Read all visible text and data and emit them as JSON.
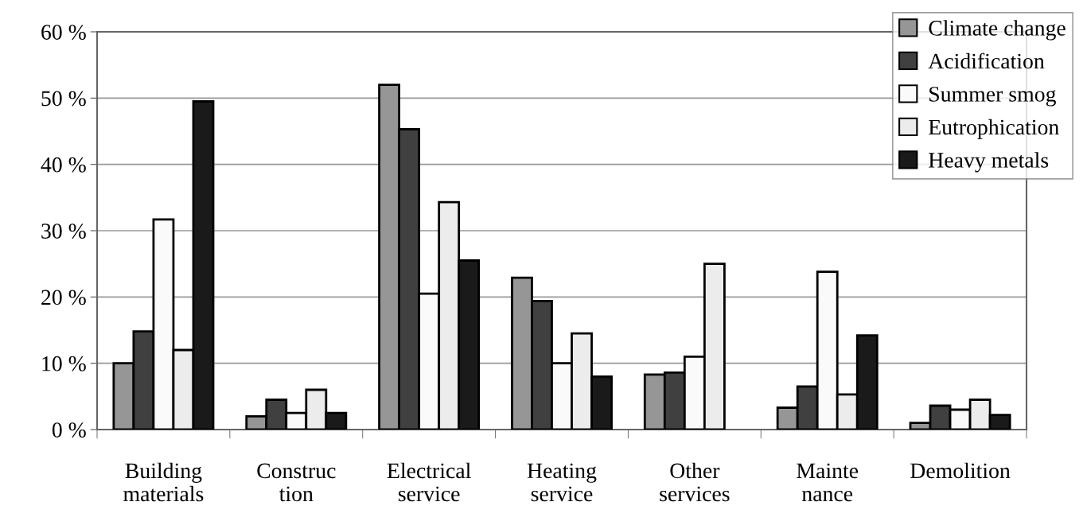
{
  "chart_data": {
    "type": "bar",
    "categories": [
      "Building\nmaterials",
      "Construc\ntion",
      "Electrical\nservice",
      "Heating\nservice",
      "Other\nservices",
      "Mainte\nnance",
      "Demolition"
    ],
    "series": [
      {
        "name": "Climate change",
        "color": "#969696",
        "values": [
          10,
          2,
          52,
          22.9,
          8.3,
          3.3,
          1
        ]
      },
      {
        "name": "Acidification",
        "color": "#404040",
        "values": [
          14.8,
          4.5,
          45.3,
          19.4,
          8.6,
          6.5,
          3.6
        ]
      },
      {
        "name": "Summer smog",
        "color": "#fafafa",
        "values": [
          31.7,
          2.5,
          20.5,
          10,
          11,
          23.8,
          3
        ]
      },
      {
        "name": "Eutrophication",
        "color": "#ececec",
        "values": [
          12,
          6,
          34.3,
          14.5,
          25,
          5.3,
          4.5
        ]
      },
      {
        "name": "Heavy metals",
        "color": "#1a1a1a",
        "values": [
          49.5,
          2.5,
          25.5,
          8,
          null,
          14.2,
          2.2
        ]
      }
    ],
    "ylim": [
      0,
      60
    ],
    "yticks": [
      {
        "value": 0,
        "label": "0 %"
      },
      {
        "value": 10,
        "label": "10 %"
      },
      {
        "value": 20,
        "label": "20 %"
      },
      {
        "value": 30,
        "label": "30 %"
      },
      {
        "value": 40,
        "label": "40 %"
      },
      {
        "value": 50,
        "label": "50 %"
      },
      {
        "value": 60,
        "label": "60 %"
      }
    ],
    "grid": "y",
    "legend": "top right"
  }
}
